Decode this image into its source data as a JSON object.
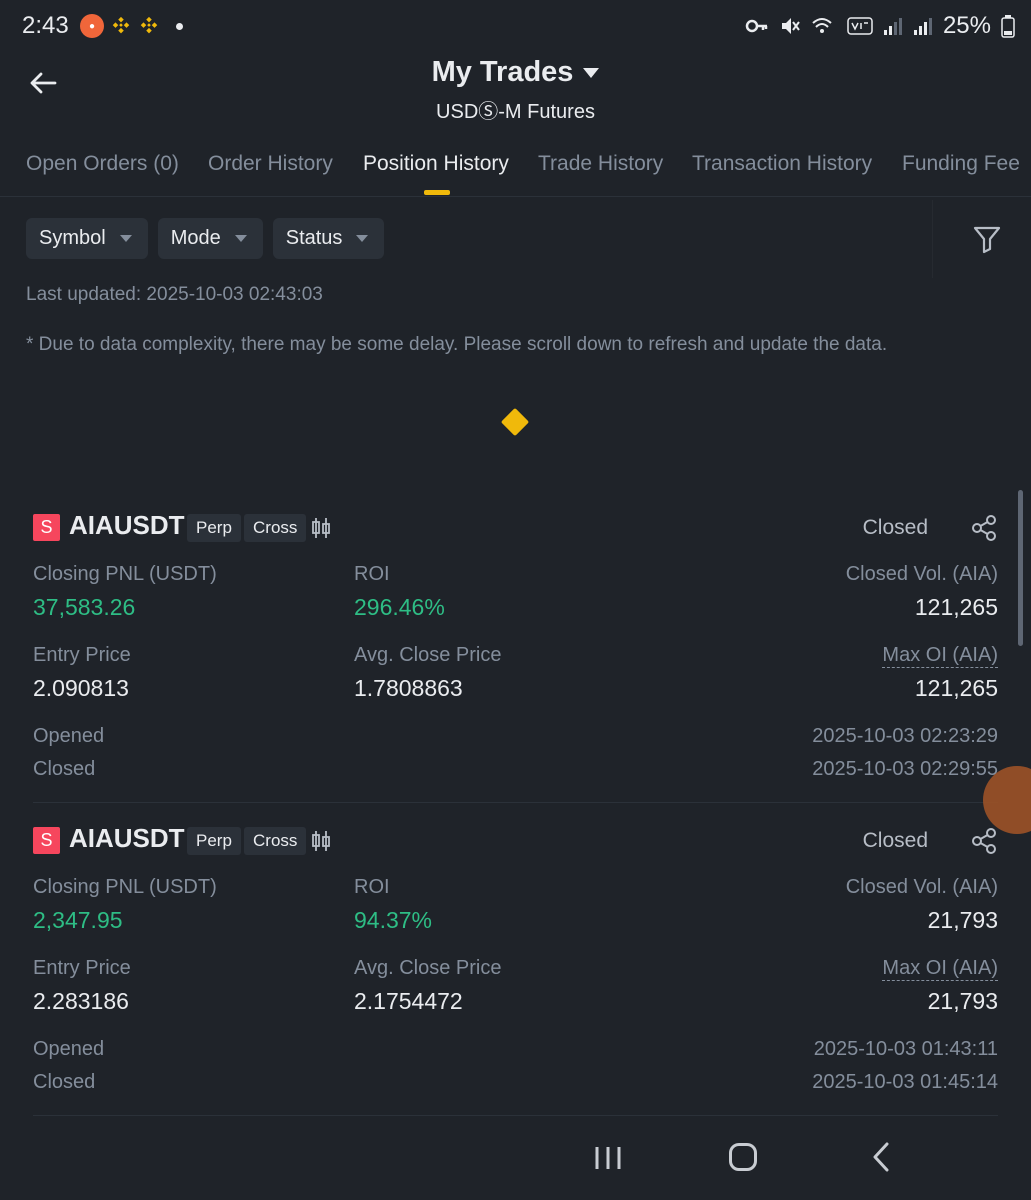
{
  "status_bar": {
    "time": "2:43",
    "battery": "25%"
  },
  "header": {
    "title": "My Trades",
    "subtitle": "USDⓈ-M Futures"
  },
  "tabs": [
    {
      "label": "Open Orders (0)",
      "active": false
    },
    {
      "label": "Order History",
      "active": false
    },
    {
      "label": "Position History",
      "active": true
    },
    {
      "label": "Trade History",
      "active": false
    },
    {
      "label": "Transaction History",
      "active": false
    },
    {
      "label": "Funding Fee",
      "active": false
    }
  ],
  "filters": {
    "symbol": "Symbol",
    "mode": "Mode",
    "status": "Status"
  },
  "last_updated": "Last updated: 2025-10-03 02:43:03",
  "disclaimer": "* Due to data complexity, there may be some delay. Please scroll down to refresh and update the data.",
  "labels": {
    "closing_pnl": "Closing PNL (USDT)",
    "roi": "ROI",
    "closed_vol": "Closed Vol. (AIA)",
    "entry_price": "Entry Price",
    "avg_close_price": "Avg. Close Price",
    "max_oi": "Max OI (AIA)",
    "opened": "Opened",
    "closed": "Closed"
  },
  "positions": [
    {
      "side": "S",
      "symbol": "AIAUSDT",
      "type_tag": "Perp",
      "margin_tag": "Cross",
      "status": "Closed",
      "closing_pnl": "37,583.26",
      "roi": "296.46%",
      "closed_vol": "121,265",
      "entry_price": "2.090813",
      "avg_close_price": "1.7808863",
      "max_oi": "121,265",
      "opened_time": "2025-10-03 02:23:29",
      "closed_time": "2025-10-03 02:29:55"
    },
    {
      "side": "S",
      "symbol": "AIAUSDT",
      "type_tag": "Perp",
      "margin_tag": "Cross",
      "status": "Closed",
      "closing_pnl": "2,347.95",
      "roi": "94.37%",
      "closed_vol": "21,793",
      "entry_price": "2.283186",
      "avg_close_price": "2.1754472",
      "max_oi": "21,793",
      "opened_time": "2025-10-03 01:43:11",
      "closed_time": "2025-10-03 01:45:14"
    }
  ],
  "colors": {
    "accent": "#f0b90b",
    "positive": "#2ebd85",
    "short": "#f6465d",
    "background": "#1f2329"
  }
}
